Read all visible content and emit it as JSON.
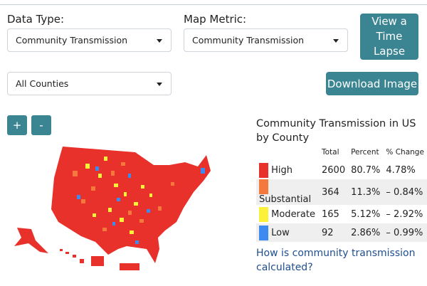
{
  "filters": {
    "data_type": {
      "label": "Data Type:",
      "value": "Community Transmission"
    },
    "map_metric": {
      "label": "Map Metric:",
      "value": "Community Transmission"
    },
    "counties": {
      "value": "All Counties"
    }
  },
  "buttons": {
    "time_lapse": [
      "View a",
      "Time",
      "Lapse"
    ],
    "download": "Download Image",
    "zoom_in": "+",
    "zoom_out": "-"
  },
  "legend": {
    "title": "Community Transmission in US by County",
    "headers": {
      "total": "Total",
      "percent": "Percent",
      "change": "% Change"
    },
    "rows": [
      {
        "label": "High",
        "total": "2600",
        "percent": "80.7%",
        "change": "4.78%",
        "color": "#e8312a"
      },
      {
        "label": "Substantial",
        "total": "364",
        "percent": "11.3%",
        "change": "– 0.84%",
        "color": "#f5793d"
      },
      {
        "label": "Moderate",
        "total": "165",
        "percent": "5.12%",
        "change": "– 2.92%",
        "color": "#fbf13a"
      },
      {
        "label": "Low",
        "total": "92",
        "percent": "2.86%",
        "change": "– 0.99%",
        "color": "#3d8bf0"
      }
    ]
  },
  "link": "How is community transmission calculated?"
}
